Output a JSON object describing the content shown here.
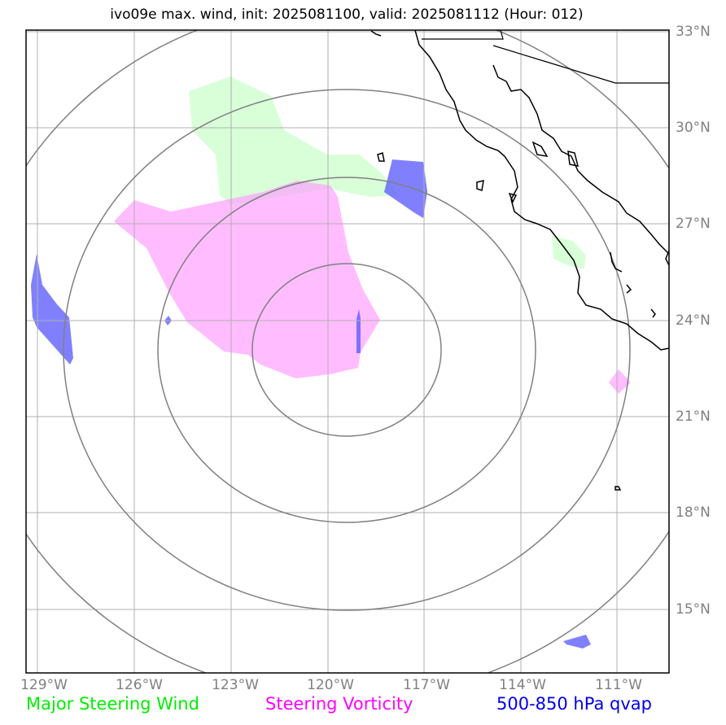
{
  "title": "ivo09e max. wind, init: 2025081100, valid: 2025081112 (Hour: 012)",
  "lon_ticks": [
    "129°W",
    "126°W",
    "123°W",
    "120°W",
    "117°W",
    "114°W",
    "111°W"
  ],
  "lat_ticks": [
    "33°N",
    "30°N",
    "27°N",
    "24°N",
    "21°N",
    "18°N",
    "15°N"
  ],
  "legend": {
    "wind": "Major Steering Wind",
    "vorticity": "Steering Vorticity",
    "qvap": "500-850 hPa qvap"
  },
  "colors": {
    "wind": "#00ee00",
    "vorticity": "#ff00ff",
    "qvap": "#0000ee",
    "wind_fill": "#ccffcc",
    "vort_fill": "#ffb3ff",
    "qvap_fill": "#7777ff",
    "grid": "#b0b0b0",
    "rings": "#808080"
  }
}
